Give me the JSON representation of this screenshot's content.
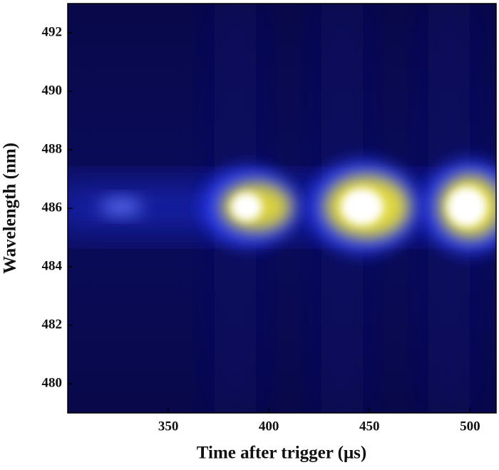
{
  "chart_data": {
    "type": "heatmap",
    "xlabel": "Time after trigger (μs)",
    "ylabel": "Wavelength (nm)",
    "xlim": [
      300,
      513
    ],
    "xticks": [
      350,
      400,
      450,
      500
    ],
    "ylim": [
      479,
      493
    ],
    "yticks": [
      480,
      482,
      484,
      486,
      488,
      490,
      492
    ]
  }
}
